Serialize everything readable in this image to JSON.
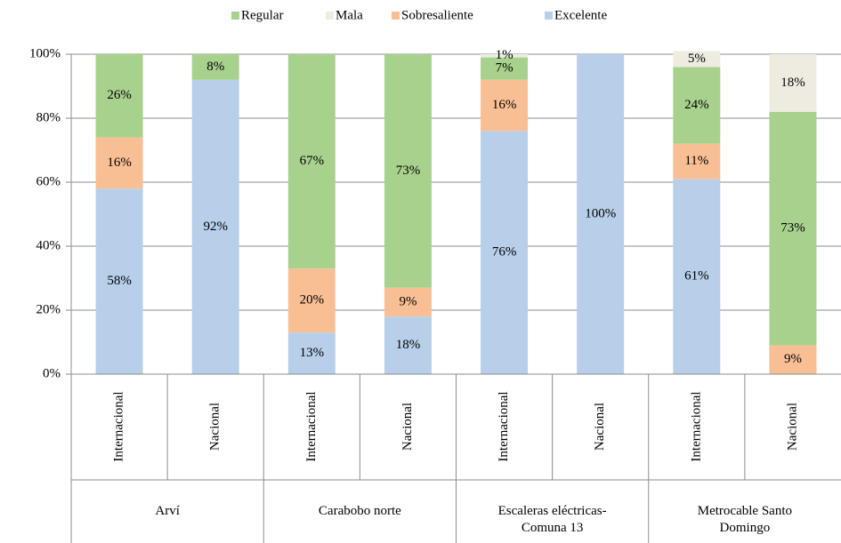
{
  "chart_data": {
    "type": "stacked_bar",
    "groups": [
      "Arví",
      "Carabobo norte",
      "Escaleras eléctricas-Comuna 13",
      "Metrocable Santo Domingo"
    ],
    "categories": [
      "Internacional",
      "Nacional",
      "Internacional",
      "Nacional",
      "Internacional",
      "Nacional",
      "Internacional",
      "Nacional"
    ],
    "series": [
      {
        "name": "Excelente",
        "color": "#b7cfe9",
        "values": [
          58,
          92,
          13,
          18,
          76,
          100,
          61,
          null
        ],
        "value_labels": [
          "58%",
          "92%",
          "13%",
          "18%",
          "76%",
          "100%",
          "61%",
          null
        ]
      },
      {
        "name": "Sobresaliente",
        "color": "#f9bf94",
        "values": [
          16,
          null,
          20,
          9,
          16,
          null,
          11,
          9
        ],
        "value_labels": [
          "16%",
          null,
          "20%",
          "9%",
          "16%",
          null,
          "11%",
          "9%"
        ]
      },
      {
        "name": "Regular",
        "color": "#a9d18e",
        "values": [
          26,
          8,
          67,
          73,
          7,
          null,
          24,
          73
        ],
        "value_labels": [
          "26%",
          "8%",
          "67%",
          "73%",
          "7%",
          null,
          "24%",
          "73%"
        ]
      },
      {
        "name": "Mala",
        "color": "#eeece1",
        "values": [
          null,
          null,
          null,
          null,
          1,
          null,
          5,
          18
        ],
        "value_labels": [
          null,
          null,
          null,
          null,
          "1%",
          null,
          "5%",
          "18%"
        ]
      }
    ],
    "ylim": [
      0,
      100
    ],
    "yticks": [
      {
        "value": 0,
        "label": "0%"
      },
      {
        "value": 20,
        "label": "20%"
      },
      {
        "value": 40,
        "label": "40%"
      },
      {
        "value": 60,
        "label": "60%"
      },
      {
        "value": 80,
        "label": "80%"
      },
      {
        "value": 100,
        "label": "100%"
      }
    ],
    "grid": true
  }
}
